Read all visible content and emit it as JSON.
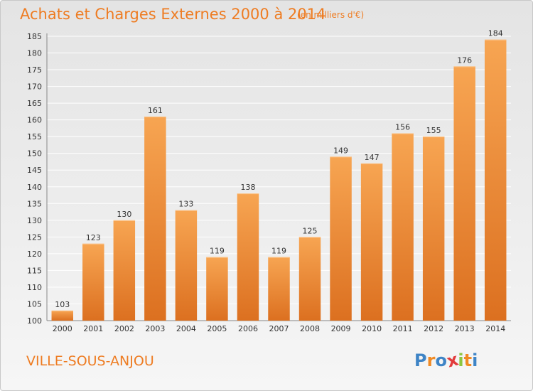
{
  "header": {
    "title": "Achats et Charges Externes 2000 à 2014",
    "units": "(en milliers d'€)"
  },
  "footer": {
    "place": "VILLE-SOUS-ANJOU",
    "logo_letters": [
      "P",
      "r",
      "o",
      "x",
      "i",
      "t",
      "i"
    ]
  },
  "colors": {
    "accent": "#ee7c22",
    "bar_light": "#f7a552",
    "bar_dark": "#dc7020",
    "logo": [
      "#3e84c6",
      "#f08a24",
      "#3e84c6",
      "#e23b3b",
      "#8cc63f",
      "#f08a24",
      "#3e84c6"
    ]
  },
  "chart_data": {
    "type": "bar",
    "title": "Achats et Charges Externes 2000 à 2014",
    "subtitle": "(en milliers d'€)",
    "xlabel": "",
    "ylabel": "",
    "categories": [
      "2000",
      "2001",
      "2002",
      "2003",
      "2004",
      "2005",
      "2006",
      "2007",
      "2008",
      "2009",
      "2010",
      "2011",
      "2012",
      "2013",
      "2014"
    ],
    "values": [
      103,
      123,
      130,
      161,
      133,
      119,
      138,
      119,
      125,
      149,
      147,
      156,
      155,
      176,
      184
    ],
    "ylim": [
      100,
      185
    ],
    "yticks": [
      100,
      105,
      110,
      115,
      120,
      125,
      130,
      135,
      140,
      145,
      150,
      155,
      160,
      165,
      170,
      175,
      180,
      185
    ],
    "grid": true,
    "data_labels": true
  }
}
